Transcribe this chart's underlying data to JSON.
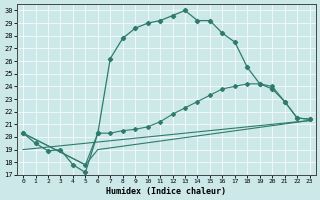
{
  "xlabel": "Humidex (Indice chaleur)",
  "background_color": "#cde8e8",
  "line_color": "#2e7b6e",
  "xlim": [
    -0.5,
    23.5
  ],
  "ylim": [
    17,
    30.5
  ],
  "yticks": [
    17,
    18,
    19,
    20,
    21,
    22,
    23,
    24,
    25,
    26,
    27,
    28,
    29,
    30
  ],
  "xticks": [
    0,
    1,
    2,
    3,
    4,
    5,
    6,
    7,
    8,
    9,
    10,
    11,
    12,
    13,
    14,
    15,
    16,
    17,
    18,
    19,
    20,
    21,
    22,
    23
  ],
  "line1_x": [
    0,
    1,
    2,
    3,
    4,
    5,
    6,
    7,
    8,
    9,
    10,
    11,
    12,
    13,
    14,
    15,
    16,
    17,
    18,
    19,
    20,
    21,
    22,
    23
  ],
  "line1_y": [
    20.3,
    19.5,
    18.9,
    19.0,
    17.8,
    17.2,
    20.3,
    26.2,
    27.8,
    28.6,
    29.0,
    29.2,
    29.6,
    30.0,
    29.2,
    29.2,
    28.2,
    27.5,
    25.5,
    24.2,
    23.8,
    22.8,
    21.5,
    21.4
  ],
  "line2_x": [
    0,
    5,
    6,
    7,
    8,
    9,
    10,
    11,
    12,
    13,
    14,
    15,
    16,
    17,
    18,
    19,
    20,
    21,
    22,
    23
  ],
  "line2_y": [
    20.3,
    17.8,
    20.3,
    20.3,
    20.5,
    20.6,
    20.8,
    21.2,
    21.8,
    22.3,
    22.8,
    23.3,
    23.8,
    24.0,
    24.2,
    24.2,
    24.0,
    22.8,
    21.5,
    21.4
  ],
  "line3_x": [
    0,
    5,
    6,
    23
  ],
  "line3_y": [
    20.3,
    17.8,
    19.0,
    21.3
  ],
  "line4_x": [
    0,
    23
  ],
  "line4_y": [
    19.0,
    21.3
  ]
}
